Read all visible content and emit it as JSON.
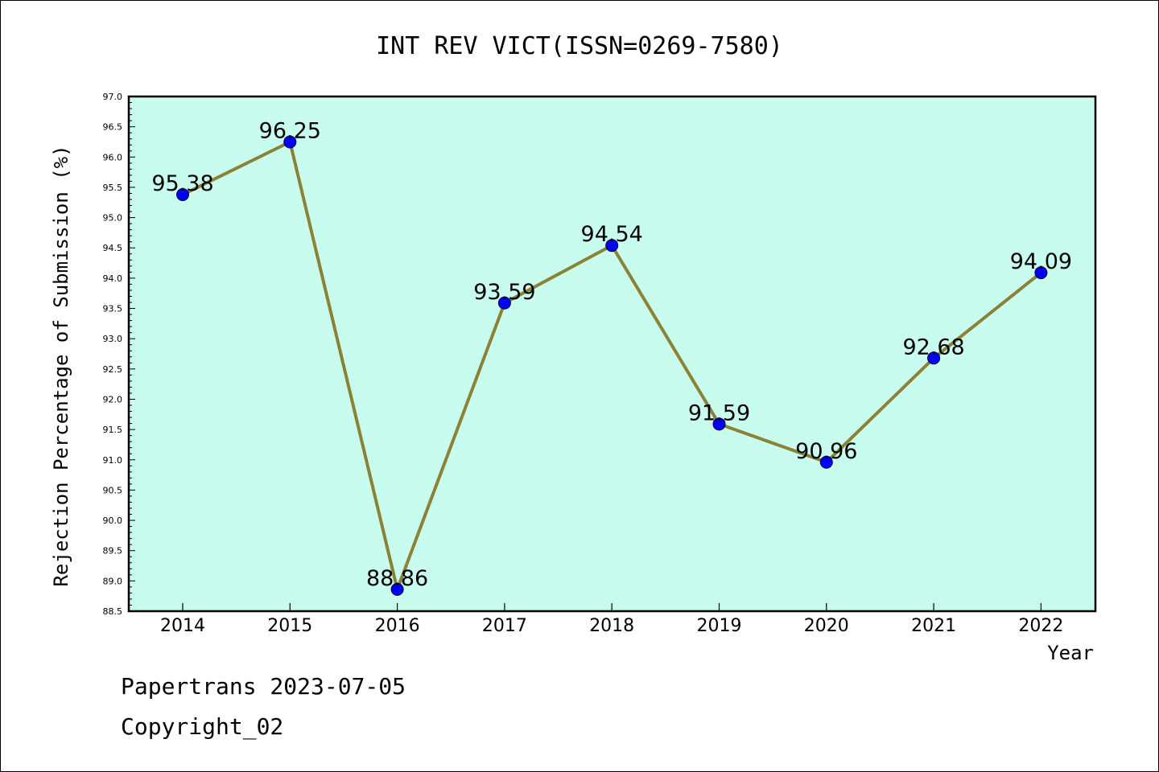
{
  "chart_data": {
    "type": "line",
    "title": "INT REV VICT(ISSN=0269-7580)",
    "xlabel": "Year",
    "ylabel": "Rejection Percentage of Submission (%)",
    "categories": [
      "2014",
      "2015",
      "2016",
      "2017",
      "2018",
      "2019",
      "2020",
      "2021",
      "2022"
    ],
    "values": [
      95.38,
      96.25,
      88.86,
      93.59,
      94.54,
      91.59,
      90.96,
      92.68,
      94.09
    ],
    "data_labels": [
      "95.38",
      "96.25",
      "88.86",
      "93.59",
      "94.54",
      "91.59",
      "90.96",
      "92.68",
      "94.09"
    ],
    "ylim": [
      88.5,
      97.0
    ],
    "yticks": [
      "88.5",
      "89.0",
      "89.5",
      "90.0",
      "90.5",
      "91.0",
      "91.5",
      "92.0",
      "92.5",
      "93.0",
      "93.5",
      "94.0",
      "94.5",
      "95.0",
      "95.5",
      "96.0",
      "96.5",
      "97.0"
    ],
    "grid": false,
    "colors": {
      "plot_background": "#c8fcee",
      "line": "#8b8236",
      "marker": "#0000ff"
    }
  },
  "footer": {
    "line1": "Papertrans 2023-07-05",
    "line2": "Copyright_02"
  }
}
